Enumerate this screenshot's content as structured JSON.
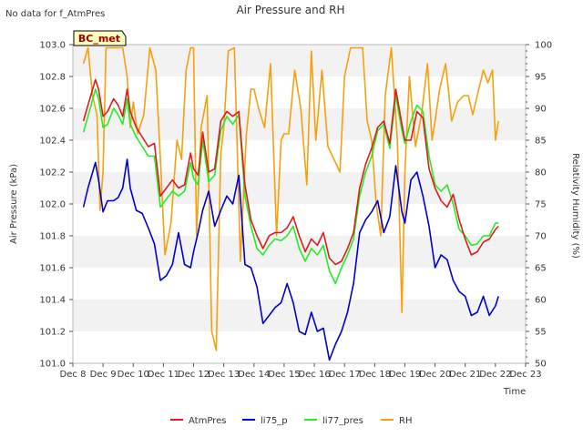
{
  "page": {
    "note": "No data for f_AtmPres",
    "site_badge": "BC_met"
  },
  "chart_data": {
    "type": "line",
    "title": "Air Pressure and RH",
    "xlabel": "Time",
    "ylabel": "Air Pressure (kPa)",
    "y2label": "Relativity Humidity (%)",
    "xlim": [
      8,
      23
    ],
    "ylim": [
      101.0,
      103.0
    ],
    "y2lim": [
      50,
      100
    ],
    "x_ticks": [
      {
        "v": 8,
        "label": "Dec 8"
      },
      {
        "v": 9,
        "label": "Dec 9"
      },
      {
        "v": 10,
        "label": "Dec 10"
      },
      {
        "v": 11,
        "label": "Dec 11"
      },
      {
        "v": 12,
        "label": "Dec 12"
      },
      {
        "v": 13,
        "label": "Dec 13"
      },
      {
        "v": 14,
        "label": "Dec 14"
      },
      {
        "v": 15,
        "label": "Dec 15"
      },
      {
        "v": 16,
        "label": "Dec 16"
      },
      {
        "v": 17,
        "label": "Dec 17"
      },
      {
        "v": 18,
        "label": "Dec 18"
      },
      {
        "v": 19,
        "label": "Dec 19"
      },
      {
        "v": 20,
        "label": "Dec 20"
      },
      {
        "v": 21,
        "label": "Dec 21"
      },
      {
        "v": 22,
        "label": "Dec 22"
      },
      {
        "v": 23,
        "label": "Dec 23"
      }
    ],
    "y_ticks": [
      "101.0",
      "101.2",
      "101.4",
      "101.6",
      "101.8",
      "102.0",
      "102.2",
      "102.4",
      "102.6",
      "102.8",
      "103.0"
    ],
    "y2_ticks": [
      "50",
      "55",
      "60",
      "65",
      "70",
      "75",
      "80",
      "85",
      "90",
      "95",
      "100"
    ],
    "grid": "horizontal bands",
    "legend_position": "bottom",
    "series": [
      {
        "name": "AtmPres",
        "axis": "left",
        "color": "#e31a1c",
        "x": [
          8.35,
          8.5,
          8.75,
          8.85,
          9.0,
          9.15,
          9.35,
          9.5,
          9.65,
          9.8,
          9.9,
          10.1,
          10.3,
          10.5,
          10.7,
          10.9,
          11.1,
          11.3,
          11.5,
          11.7,
          11.9,
          12.0,
          12.15,
          12.3,
          12.5,
          12.7,
          12.9,
          13.1,
          13.3,
          13.5,
          13.7,
          13.9,
          14.1,
          14.3,
          14.5,
          14.7,
          14.9,
          15.1,
          15.3,
          15.5,
          15.7,
          15.9,
          16.1,
          16.3,
          16.5,
          16.7,
          16.9,
          17.1,
          17.3,
          17.5,
          17.7,
          17.9,
          18.1,
          18.3,
          18.5,
          18.7,
          18.9,
          19.0,
          19.2,
          19.4,
          19.6,
          19.8,
          20.0,
          20.2,
          20.4,
          20.6,
          20.8,
          21.0,
          21.2,
          21.4,
          21.6,
          21.8,
          22.0,
          22.1
        ],
        "values": [
          102.52,
          102.62,
          102.78,
          102.72,
          102.55,
          102.58,
          102.66,
          102.62,
          102.55,
          102.72,
          102.58,
          102.48,
          102.42,
          102.36,
          102.38,
          102.05,
          102.1,
          102.15,
          102.1,
          102.12,
          102.32,
          102.22,
          102.18,
          102.45,
          102.2,
          102.22,
          102.52,
          102.58,
          102.55,
          102.58,
          102.12,
          101.9,
          101.8,
          101.72,
          101.8,
          101.82,
          101.82,
          101.85,
          101.92,
          101.8,
          101.7,
          101.78,
          101.74,
          101.82,
          101.66,
          101.62,
          101.64,
          101.72,
          101.82,
          102.1,
          102.25,
          102.35,
          102.48,
          102.52,
          102.38,
          102.72,
          102.5,
          102.4,
          102.4,
          102.58,
          102.54,
          102.22,
          102.1,
          102.02,
          101.98,
          102.06,
          101.9,
          101.78,
          101.68,
          101.7,
          101.76,
          101.78,
          101.84,
          101.86
        ]
      },
      {
        "name": "li75_p",
        "axis": "left",
        "color": "#0000cc",
        "x": [
          8.35,
          8.5,
          8.75,
          8.85,
          9.0,
          9.15,
          9.35,
          9.5,
          9.65,
          9.8,
          9.9,
          10.1,
          10.3,
          10.5,
          10.7,
          10.9,
          11.1,
          11.3,
          11.5,
          11.7,
          11.9,
          12.0,
          12.15,
          12.3,
          12.5,
          12.7,
          12.9,
          13.1,
          13.3,
          13.5,
          13.7,
          13.9,
          14.1,
          14.3,
          14.5,
          14.7,
          14.9,
          15.1,
          15.3,
          15.5,
          15.7,
          15.9,
          16.1,
          16.3,
          16.5,
          16.7,
          16.9,
          17.1,
          17.3,
          17.5,
          17.7,
          17.9,
          18.1,
          18.3,
          18.5,
          18.7,
          18.9,
          19.0,
          19.2,
          19.4,
          19.6,
          19.8,
          20.0,
          20.2,
          20.4,
          20.6,
          20.8,
          21.0,
          21.2,
          21.4,
          21.6,
          21.8,
          22.0,
          22.1
        ],
        "values": [
          101.98,
          102.1,
          102.26,
          102.15,
          101.95,
          102.02,
          102.02,
          102.04,
          102.1,
          102.28,
          102.1,
          101.96,
          101.94,
          101.85,
          101.75,
          101.52,
          101.55,
          101.62,
          101.82,
          101.62,
          101.6,
          101.7,
          101.82,
          101.96,
          102.08,
          101.86,
          101.96,
          102.05,
          102.0,
          102.18,
          101.62,
          101.6,
          101.48,
          101.25,
          101.3,
          101.35,
          101.38,
          101.5,
          101.38,
          101.2,
          101.18,
          101.32,
          101.2,
          101.22,
          101.02,
          101.12,
          101.2,
          101.32,
          101.5,
          101.82,
          101.9,
          101.95,
          102.02,
          101.82,
          101.92,
          102.24,
          101.95,
          101.88,
          102.15,
          102.2,
          102.05,
          101.86,
          101.6,
          101.68,
          101.65,
          101.52,
          101.45,
          101.42,
          101.3,
          101.32,
          101.42,
          101.3,
          101.36,
          101.42
        ]
      },
      {
        "name": "li77_pres",
        "axis": "left",
        "color": "#22ee22",
        "x": [
          8.35,
          8.5,
          8.75,
          8.85,
          9.0,
          9.15,
          9.35,
          9.5,
          9.65,
          9.8,
          9.9,
          10.1,
          10.3,
          10.5,
          10.7,
          10.9,
          11.1,
          11.3,
          11.5,
          11.7,
          11.9,
          12.0,
          12.15,
          12.3,
          12.5,
          12.7,
          12.9,
          13.1,
          13.3,
          13.5,
          13.7,
          13.9,
          14.1,
          14.3,
          14.5,
          14.7,
          14.9,
          15.1,
          15.3,
          15.5,
          15.7,
          15.9,
          16.1,
          16.3,
          16.5,
          16.7,
          16.9,
          17.1,
          17.3,
          17.5,
          17.7,
          17.9,
          18.1,
          18.3,
          18.5,
          18.7,
          18.9,
          19.0,
          19.2,
          19.4,
          19.6,
          19.8,
          20.0,
          20.2,
          20.4,
          20.6,
          20.8,
          21.0,
          21.2,
          21.4,
          21.6,
          21.8,
          22.0,
          22.1
        ],
        "values": [
          102.45,
          102.55,
          102.72,
          102.66,
          102.48,
          102.5,
          102.6,
          102.56,
          102.5,
          102.66,
          102.5,
          102.42,
          102.36,
          102.3,
          102.3,
          101.98,
          102.03,
          102.08,
          102.05,
          102.08,
          102.26,
          102.16,
          102.12,
          102.4,
          102.14,
          102.18,
          102.46,
          102.55,
          102.5,
          102.56,
          102.05,
          101.86,
          101.72,
          101.68,
          101.74,
          101.78,
          101.77,
          101.8,
          101.86,
          101.72,
          101.64,
          101.72,
          101.68,
          101.74,
          101.58,
          101.5,
          101.6,
          101.68,
          101.78,
          102.05,
          102.2,
          102.3,
          102.46,
          102.5,
          102.35,
          102.68,
          102.46,
          102.38,
          102.52,
          102.62,
          102.58,
          102.3,
          102.12,
          102.08,
          102.12,
          102.0,
          101.84,
          101.8,
          101.74,
          101.75,
          101.8,
          101.8,
          101.88,
          101.88
        ]
      },
      {
        "name": "RH",
        "axis": "right",
        "color": "#f5a00e",
        "x": [
          8.35,
          8.5,
          8.65,
          8.8,
          8.9,
          9.0,
          9.1,
          9.25,
          9.45,
          9.65,
          9.8,
          9.9,
          10.0,
          10.15,
          10.35,
          10.55,
          10.75,
          10.9,
          11.05,
          11.25,
          11.45,
          11.6,
          11.75,
          11.9,
          12.0,
          12.1,
          12.25,
          12.45,
          12.6,
          12.75,
          12.9,
          13.0,
          13.15,
          13.35,
          13.55,
          13.75,
          13.9,
          14.0,
          14.15,
          14.35,
          14.55,
          14.75,
          14.9,
          15.0,
          15.15,
          15.35,
          15.55,
          15.75,
          15.9,
          16.05,
          16.25,
          16.45,
          16.65,
          16.85,
          17.0,
          17.2,
          17.4,
          17.6,
          17.75,
          17.9,
          18.05,
          18.2,
          18.35,
          18.55,
          18.75,
          18.9,
          19.0,
          19.15,
          19.35,
          19.55,
          19.75,
          19.9,
          20.0,
          20.15,
          20.35,
          20.55,
          20.75,
          20.95,
          21.1,
          21.25,
          21.45,
          21.6,
          21.75,
          21.9,
          22.0,
          22.1
        ],
        "values": [
          97,
          99.5,
          92,
          89,
          74,
          80,
          99.5,
          99.5,
          99.5,
          99.5,
          95,
          87,
          91,
          86,
          89,
          99.5,
          96,
          82,
          67,
          72,
          85,
          82,
          96,
          99.5,
          99.5,
          70,
          87,
          92,
          55,
          52,
          83,
          87,
          99,
          99.5,
          66,
          86,
          93,
          93,
          90,
          87,
          97,
          70,
          85,
          86,
          86,
          96,
          90,
          78,
          99,
          85,
          96,
          84,
          82,
          80,
          95,
          99.5,
          99.5,
          99.5,
          88,
          85,
          75,
          70,
          92,
          99.5,
          85,
          58,
          80,
          95,
          84,
          89,
          97,
          85,
          88,
          93,
          97,
          88,
          91,
          92,
          92,
          89,
          93,
          96,
          94,
          96,
          85,
          88
        ]
      }
    ]
  }
}
